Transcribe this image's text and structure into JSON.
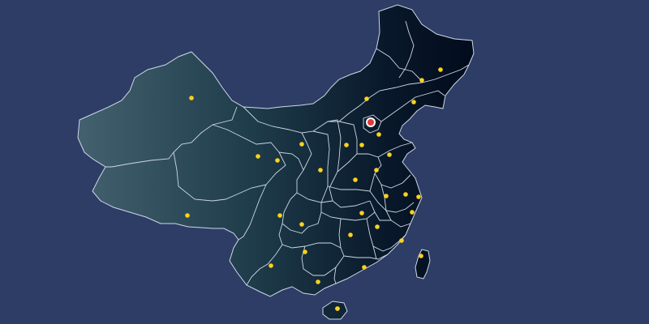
{
  "map": {
    "background_color": "#2e3d66",
    "land_gradient": [
      "#43616f",
      "#1e3b4a",
      "#08182a",
      "#020b1c"
    ],
    "border_color": "#cfd8e6",
    "marker_color": "#ffd21a",
    "capital_marker_color": "#e23838",
    "capital_ring_color": "#ffffff",
    "regions": [
      "xinjiang",
      "tibet",
      "qinghai",
      "gansu",
      "inner-mongolia",
      "heilongjiang",
      "jilin",
      "liaoning",
      "beijing",
      "tianjin",
      "hebei",
      "shanxi",
      "shaanxi",
      "ningxia",
      "shandong",
      "henan",
      "jiangsu",
      "anhui",
      "shanghai",
      "zhejiang",
      "hubei",
      "sichuan",
      "chongqing",
      "hunan",
      "jiangxi",
      "fujian",
      "guizhou",
      "yunnan",
      "guangxi",
      "guangdong",
      "hainan",
      "taiwan"
    ],
    "markers": [
      {
        "region": "xinjiang"
      },
      {
        "region": "tibet"
      },
      {
        "region": "qinghai"
      },
      {
        "region": "gansu"
      },
      {
        "region": "ningxia"
      },
      {
        "region": "inner-mongolia"
      },
      {
        "region": "heilongjiang"
      },
      {
        "region": "jilin"
      },
      {
        "region": "liaoning"
      },
      {
        "region": "beijing",
        "capital": true
      },
      {
        "region": "tianjin"
      },
      {
        "region": "hebei"
      },
      {
        "region": "shanxi"
      },
      {
        "region": "shaanxi"
      },
      {
        "region": "shandong"
      },
      {
        "region": "henan"
      },
      {
        "region": "jiangsu"
      },
      {
        "region": "anhui"
      },
      {
        "region": "shanghai"
      },
      {
        "region": "zhejiang"
      },
      {
        "region": "hubei"
      },
      {
        "region": "sichuan"
      },
      {
        "region": "chongqing"
      },
      {
        "region": "hunan"
      },
      {
        "region": "jiangxi"
      },
      {
        "region": "fujian"
      },
      {
        "region": "guizhou"
      },
      {
        "region": "yunnan"
      },
      {
        "region": "guangxi"
      },
      {
        "region": "guangdong"
      },
      {
        "region": "hainan"
      },
      {
        "region": "taiwan"
      },
      {
        "region": "hebei-south"
      },
      {
        "region": "shandong-west"
      }
    ]
  }
}
